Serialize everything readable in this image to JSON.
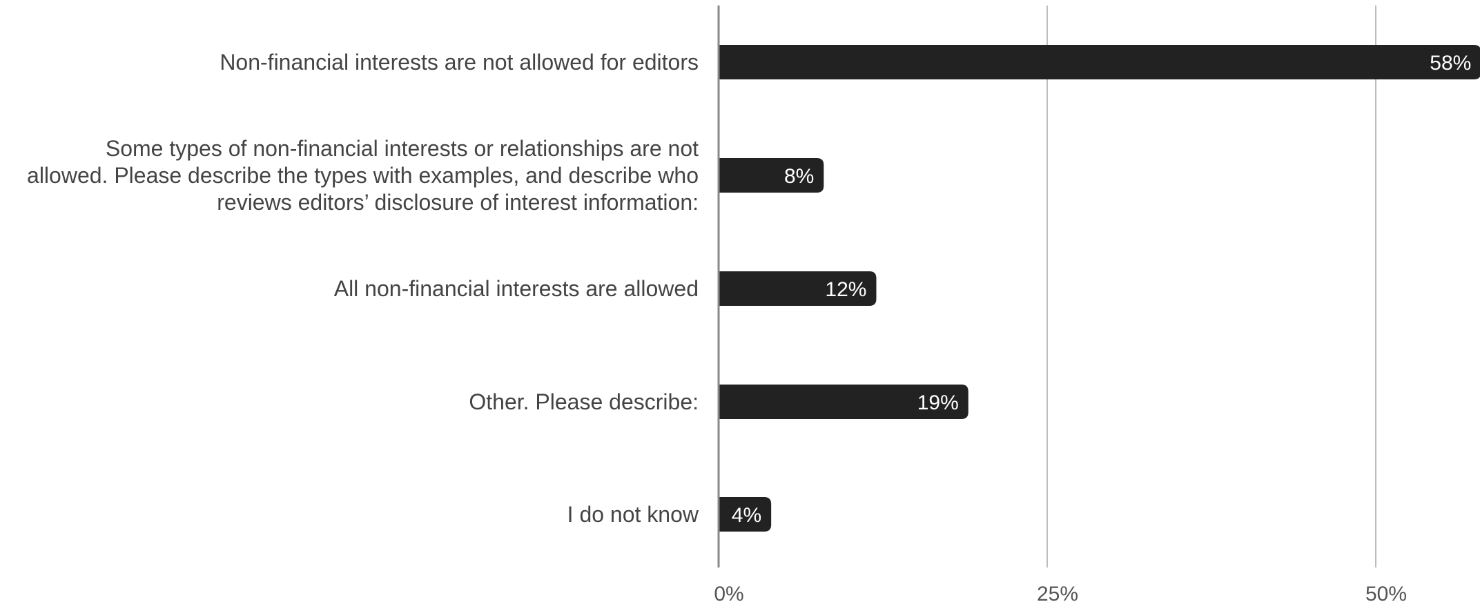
{
  "chart_data": {
    "type": "bar",
    "orientation": "horizontal",
    "categories": [
      [
        "Non-financial interests are not allowed for editors"
      ],
      [
        "Some types of non-financial interests or relationships are not",
        "allowed. Please describe the types with examples, and describe who",
        "reviews editors’ disclosure of interest information:"
      ],
      [
        "All non-financial interests are allowed"
      ],
      [
        "Other. Please describe:"
      ],
      [
        "I do not know"
      ]
    ],
    "values": [
      58,
      8,
      12,
      19,
      4
    ],
    "data_labels": [
      "58%",
      "8%",
      "12%",
      "19%",
      "4%"
    ],
    "xlim": [
      0,
      58
    ],
    "xticks": [
      0,
      25,
      50
    ],
    "xtick_labels": [
      "0%",
      "25%",
      "50%"
    ],
    "grid": true,
    "legend": "none",
    "colors": {
      "bar": "#222222",
      "grid": "#bdbdbd",
      "axis": "#888888",
      "category_text": "#444444",
      "tick_text": "#555555",
      "data_label_text": "#ffffff"
    }
  }
}
